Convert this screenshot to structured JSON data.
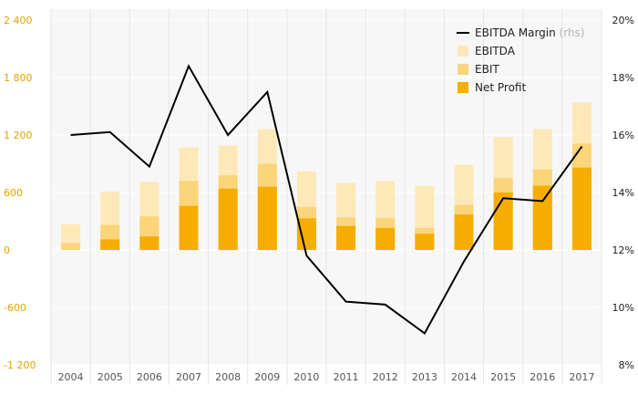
{
  "chart_data": {
    "type": "bar",
    "categories": [
      "2004",
      "2005",
      "2006",
      "2007",
      "2008",
      "2009",
      "2010",
      "2011",
      "2012",
      "2013",
      "2014",
      "2015",
      "2016",
      "2017"
    ],
    "series": [
      {
        "name": "EBITDA",
        "type": "bar",
        "axis": "left",
        "color": "#fde9b8",
        "values": [
          270,
          610,
          710,
          1070,
          1090,
          1260,
          820,
          700,
          720,
          670,
          890,
          1180,
          1260,
          1540
        ]
      },
      {
        "name": "EBIT",
        "type": "bar",
        "axis": "left",
        "color": "#fcd47a",
        "values": [
          70,
          260,
          350,
          720,
          780,
          900,
          450,
          340,
          330,
          230,
          470,
          750,
          840,
          1110
        ]
      },
      {
        "name": "Net Profit",
        "type": "bar",
        "axis": "left",
        "color": "#f5ad00",
        "values": [
          0,
          110,
          140,
          460,
          640,
          660,
          330,
          250,
          230,
          170,
          370,
          600,
          670,
          860
        ]
      },
      {
        "name": "EBITDA Margin",
        "type": "line",
        "axis": "right",
        "color": "#000000",
        "values": [
          16.0,
          16.1,
          14.9,
          18.4,
          16.0,
          17.5,
          11.8,
          10.2,
          10.1,
          9.1,
          11.6,
          13.8,
          13.7,
          15.6
        ]
      }
    ],
    "legend_note": "(rhs)",
    "legend_placement": "top-right",
    "y_left": {
      "ticks": [
        "2 400",
        "1 800",
        "1 200",
        "600",
        "0",
        "-600",
        "-1 200"
      ],
      "ylim": [
        -1200,
        2400
      ]
    },
    "y_right": {
      "ticks": [
        "20%",
        "18%",
        "16%",
        "14%",
        "12%",
        "10%",
        "8%"
      ],
      "ylim": [
        8,
        20
      ]
    },
    "xlabel": "",
    "ylabel": "",
    "title": "",
    "colors": {
      "plot_bg": "#f7f7f7",
      "grid": "#ffffff",
      "left_tick": "#e8a200",
      "right_tick": "#222222"
    },
    "grid": true
  }
}
